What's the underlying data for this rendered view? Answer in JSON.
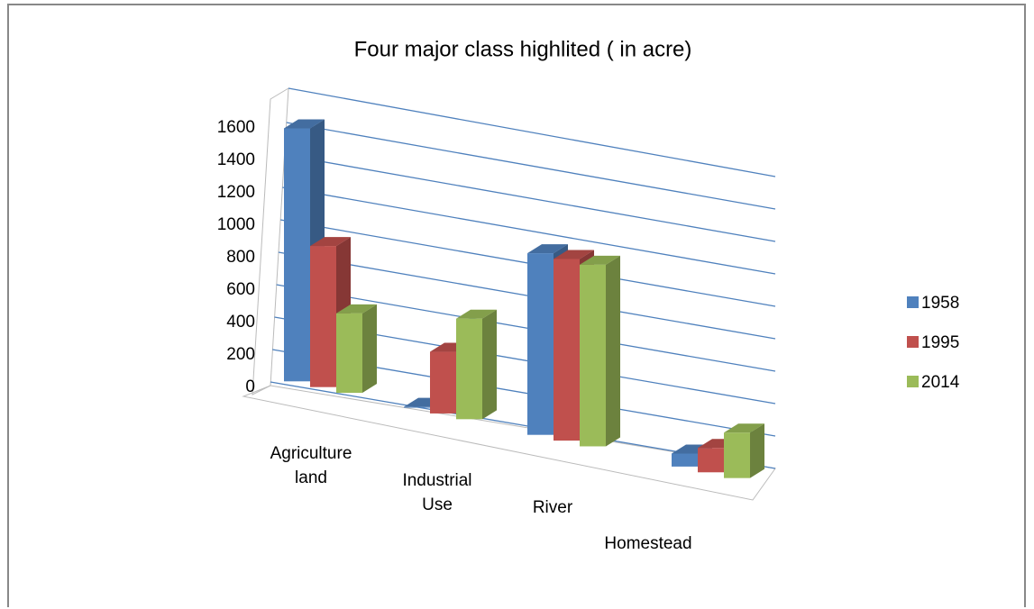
{
  "chart_data": {
    "type": "bar3d",
    "title": "Four major class highlited ( in acre)",
    "categories": [
      "Agriculture land",
      "Industrial Use",
      "River",
      "Homestead"
    ],
    "series": [
      {
        "name": "1958",
        "color": "#4f81bd",
        "values": [
          1560,
          5,
          1120,
          80
        ]
      },
      {
        "name": "1995",
        "color": "#c0504d",
        "values": [
          870,
          380,
          1120,
          150
        ]
      },
      {
        "name": "2014",
        "color": "#9bbb59",
        "values": [
          490,
          620,
          1120,
          280
        ]
      }
    ],
    "ylim": [
      0,
      1800
    ],
    "yticks": [
      0,
      200,
      400,
      600,
      800,
      1000,
      1200,
      1400,
      1600
    ],
    "grid": true,
    "legend": "right"
  }
}
